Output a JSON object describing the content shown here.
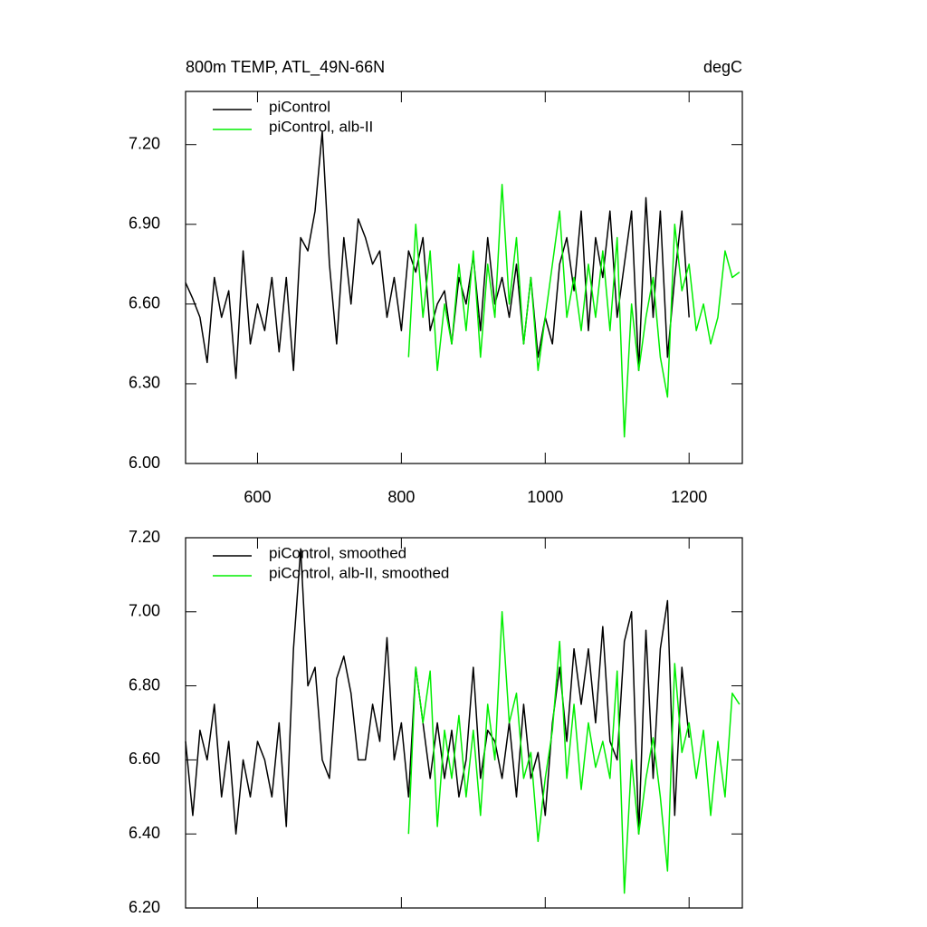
{
  "chart_data": [
    {
      "type": "line",
      "title": "800m TEMP, ATL_49N-66N",
      "units": "degC",
      "xlim": [
        500,
        1274
      ],
      "xticks": [
        600,
        800,
        1000,
        1200
      ],
      "show_xtick_labels": true,
      "ylim": [
        6.0,
        7.4
      ],
      "yticks": [
        {
          "value": 6.0,
          "label": "6.00"
        },
        {
          "value": 6.3,
          "label": "6.30"
        },
        {
          "value": 6.6,
          "label": "6.60"
        },
        {
          "value": 6.9,
          "label": "6.90"
        },
        {
          "value": 7.2,
          "label": "7.20"
        }
      ],
      "legend": "upper left",
      "series": [
        {
          "name": "piControl",
          "color": "#000000",
          "x": [
            500,
            510,
            520,
            530,
            540,
            550,
            560,
            570,
            580,
            590,
            600,
            610,
            620,
            630,
            640,
            650,
            660,
            670,
            680,
            690,
            700,
            710,
            720,
            730,
            740,
            750,
            760,
            770,
            780,
            790,
            800,
            810,
            820,
            830,
            840,
            850,
            860,
            870,
            880,
            890,
            900,
            910,
            920,
            930,
            940,
            950,
            960,
            970,
            980,
            990,
            1000,
            1010,
            1020,
            1030,
            1040,
            1050,
            1060,
            1070,
            1080,
            1090,
            1100,
            1110,
            1120,
            1130,
            1140,
            1150,
            1160,
            1170,
            1180,
            1190,
            1200
          ],
          "values": [
            6.68,
            6.62,
            6.55,
            6.38,
            6.7,
            6.55,
            6.65,
            6.32,
            6.8,
            6.45,
            6.6,
            6.5,
            6.7,
            6.42,
            6.7,
            6.35,
            6.85,
            6.8,
            6.95,
            7.25,
            6.75,
            6.45,
            6.85,
            6.6,
            6.92,
            6.85,
            6.75,
            6.8,
            6.55,
            6.7,
            6.5,
            6.8,
            6.72,
            6.85,
            6.5,
            6.6,
            6.65,
            6.45,
            6.7,
            6.6,
            6.78,
            6.5,
            6.85,
            6.6,
            6.7,
            6.55,
            6.75,
            6.45,
            6.7,
            6.4,
            6.55,
            6.45,
            6.75,
            6.85,
            6.65,
            6.95,
            6.5,
            6.85,
            6.7,
            6.95,
            6.55,
            6.75,
            6.95,
            6.35,
            7.0,
            6.55,
            6.95,
            6.4,
            6.7,
            6.95,
            6.55
          ]
        },
        {
          "name": "piControl, alb-II",
          "color": "#00ee00",
          "x": [
            810,
            820,
            830,
            840,
            850,
            860,
            870,
            880,
            890,
            900,
            910,
            920,
            930,
            940,
            950,
            960,
            970,
            980,
            990,
            1000,
            1010,
            1020,
            1030,
            1040,
            1050,
            1060,
            1070,
            1080,
            1090,
            1100,
            1110,
            1120,
            1130,
            1140,
            1150,
            1160,
            1170,
            1180,
            1190,
            1200,
            1210,
            1220,
            1230,
            1240,
            1250,
            1260,
            1270
          ],
          "values": [
            6.4,
            6.9,
            6.55,
            6.8,
            6.35,
            6.6,
            6.45,
            6.75,
            6.5,
            6.8,
            6.4,
            6.75,
            6.55,
            7.05,
            6.6,
            6.85,
            6.45,
            6.7,
            6.35,
            6.55,
            6.75,
            6.95,
            6.55,
            6.7,
            6.5,
            6.75,
            6.55,
            6.8,
            6.5,
            6.85,
            6.1,
            6.6,
            6.35,
            6.55,
            6.7,
            6.4,
            6.25,
            6.9,
            6.65,
            6.75,
            6.5,
            6.6,
            6.45,
            6.55,
            6.8,
            6.7,
            6.72
          ]
        }
      ]
    },
    {
      "type": "line",
      "xlim": [
        500,
        1274
      ],
      "xticks": [
        600,
        800,
        1000,
        1200
      ],
      "show_xtick_labels": false,
      "ylim": [
        6.2,
        7.2
      ],
      "yticks": [
        {
          "value": 6.2,
          "label": "6.20"
        },
        {
          "value": 6.4,
          "label": "6.40"
        },
        {
          "value": 6.6,
          "label": "6.60"
        },
        {
          "value": 6.8,
          "label": "6.80"
        },
        {
          "value": 7.0,
          "label": "7.00"
        },
        {
          "value": 7.2,
          "label": "7.20"
        }
      ],
      "legend": "upper left",
      "series": [
        {
          "name": "piControl, smoothed",
          "color": "#000000",
          "x": [
            500,
            510,
            520,
            530,
            540,
            550,
            560,
            570,
            580,
            590,
            600,
            610,
            620,
            630,
            640,
            650,
            660,
            670,
            680,
            690,
            700,
            710,
            720,
            730,
            740,
            750,
            760,
            770,
            780,
            790,
            800,
            810,
            820,
            830,
            840,
            850,
            860,
            870,
            880,
            890,
            900,
            910,
            920,
            930,
            940,
            950,
            960,
            970,
            980,
            990,
            1000,
            1010,
            1020,
            1030,
            1040,
            1050,
            1060,
            1070,
            1080,
            1090,
            1100,
            1110,
            1120,
            1130,
            1140,
            1150,
            1160,
            1170,
            1180,
            1190,
            1200
          ],
          "values": [
            6.65,
            6.45,
            6.68,
            6.6,
            6.75,
            6.5,
            6.65,
            6.4,
            6.6,
            6.5,
            6.65,
            6.6,
            6.5,
            6.7,
            6.42,
            6.9,
            7.17,
            6.8,
            6.85,
            6.6,
            6.55,
            6.82,
            6.88,
            6.78,
            6.6,
            6.6,
            6.75,
            6.65,
            6.93,
            6.6,
            6.7,
            6.5,
            6.85,
            6.7,
            6.55,
            6.7,
            6.55,
            6.68,
            6.5,
            6.6,
            6.85,
            6.55,
            6.68,
            6.65,
            6.55,
            6.7,
            6.5,
            6.75,
            6.55,
            6.62,
            6.45,
            6.7,
            6.85,
            6.65,
            6.9,
            6.75,
            6.9,
            6.7,
            6.96,
            6.65,
            6.6,
            6.92,
            7.0,
            6.4,
            6.95,
            6.55,
            6.9,
            7.03,
            6.45,
            6.85,
            6.66
          ]
        },
        {
          "name": "piControl, alb-II, smoothed",
          "color": "#00ee00",
          "x": [
            810,
            820,
            830,
            840,
            850,
            860,
            870,
            880,
            890,
            900,
            910,
            920,
            930,
            940,
            950,
            960,
            970,
            980,
            990,
            1000,
            1010,
            1020,
            1030,
            1040,
            1050,
            1060,
            1070,
            1080,
            1090,
            1100,
            1110,
            1120,
            1130,
            1140,
            1150,
            1160,
            1170,
            1180,
            1190,
            1200,
            1210,
            1220,
            1230,
            1240,
            1250,
            1260,
            1270
          ],
          "values": [
            6.4,
            6.85,
            6.7,
            6.84,
            6.42,
            6.68,
            6.55,
            6.72,
            6.5,
            6.68,
            6.45,
            6.75,
            6.6,
            7.0,
            6.7,
            6.78,
            6.55,
            6.62,
            6.38,
            6.55,
            6.68,
            6.92,
            6.55,
            6.75,
            6.52,
            6.7,
            6.58,
            6.65,
            6.55,
            6.84,
            6.24,
            6.6,
            6.4,
            6.55,
            6.66,
            6.5,
            6.3,
            6.86,
            6.62,
            6.7,
            6.55,
            6.68,
            6.45,
            6.65,
            6.5,
            6.78,
            6.75
          ]
        }
      ]
    }
  ]
}
